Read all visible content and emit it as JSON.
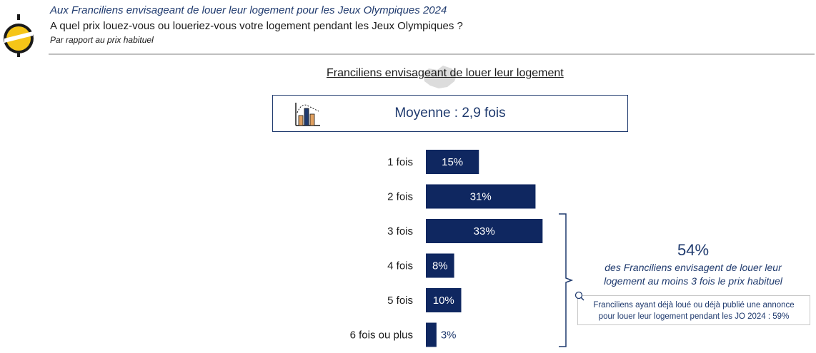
{
  "header": {
    "subtitle": "Aux Franciliens envisageant de louer leur logement pour les Jeux Olympiques 2024",
    "question": "A quel prix louez-vous ou loueriez-vous votre logement pendant les Jeux Olympiques ?",
    "note": "Par rapport au prix habituel"
  },
  "summary": {
    "average_label": "Moyenne : 2,9 fois",
    "big_percent": "54%",
    "big_percent_text_line1": "des Franciliens envisagent de louer leur",
    "big_percent_text_line2": "logement au moins 3 fois le prix habituel",
    "callout_line1": "Franciliens ayant déjà loué ou déjà publié une annonce",
    "callout_line2": "pour louer leur logement pendant les JO 2024 : 59%"
  },
  "colors": {
    "bar": "#0f2760",
    "accent_text": "#1f3a6e",
    "logo_yellow": "#f5c518"
  },
  "chart_data": {
    "type": "bar",
    "orientation": "horizontal",
    "title": "Franciliens envisageant de louer leur logement",
    "categories": [
      "1 fois",
      "2 fois",
      "3 fois",
      "4 fois",
      "5 fois",
      "6 fois ou plus"
    ],
    "values": [
      15,
      31,
      33,
      8,
      10,
      3
    ],
    "labels": [
      "15%",
      "31%",
      "33%",
      "8%",
      "10%",
      "3%"
    ],
    "unit": "%",
    "xlim": [
      0,
      100
    ],
    "grid": false,
    "legend": "none"
  }
}
